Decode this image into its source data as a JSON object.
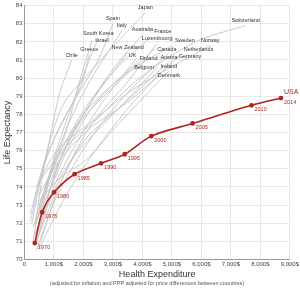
{
  "chart_data": {
    "type": "line",
    "x_label": "Health Expenditure",
    "subtitle": "(adjusted for inflation and PPP adjusted for price differences between countries)",
    "y_label": "Life Expectancy",
    "xlim": [
      0,
      9000
    ],
    "xticks": [
      0,
      {
        "value": 1000,
        "label": "1,000$"
      },
      {
        "value": 2000,
        "label": "2,000$"
      },
      {
        "value": 3000,
        "label": "3,000$"
      },
      {
        "value": 4000,
        "label": "4,000$"
      },
      {
        "value": 5000,
        "label": "5,000$"
      },
      {
        "value": 6000,
        "label": "6,000$"
      },
      {
        "value": 7000,
        "label": "7,000$"
      },
      {
        "value": 8000,
        "label": "8,000$"
      },
      {
        "value": 9000,
        "label": "9,000$"
      }
    ],
    "ylim": [
      70,
      84
    ],
    "yticks": [
      70,
      71,
      72,
      73,
      74,
      75,
      76,
      77,
      78,
      79,
      80,
      81,
      82,
      83,
      84
    ],
    "grid": true,
    "series": [
      {
        "name": "Japan",
        "color": "#c4c4c4",
        "x": [
          250,
          700,
          1300,
          2200,
          3100,
          4100
        ],
        "values": [
          72.0,
          75.5,
          78.5,
          80.3,
          81.9,
          83.6
        ]
      },
      {
        "name": "Spain",
        "color": "#c4c4c4",
        "x": [
          200,
          600,
          1100,
          1700,
          2500,
          3000
        ],
        "values": [
          72.1,
          74.8,
          77.0,
          78.8,
          81.0,
          83.0
        ]
      },
      {
        "name": "Italy",
        "color": "#c4c4c4",
        "x": [
          300,
          800,
          1500,
          2200,
          2900,
          3300
        ],
        "values": [
          71.8,
          74.5,
          77.5,
          79.8,
          81.6,
          82.6
        ]
      },
      {
        "name": "Switzerland",
        "color": "#c4c4c4",
        "x": [
          500,
          1200,
          2500,
          3900,
          5800,
          7500
        ],
        "values": [
          73.0,
          75.8,
          77.8,
          80.0,
          82.0,
          82.9
        ]
      },
      {
        "name": "South Korea",
        "color": "#c4c4c4",
        "x": [
          400,
          900,
          1500,
          2100,
          2500
        ],
        "values": [
          71.0,
          75.0,
          78.0,
          80.6,
          82.2
        ]
      },
      {
        "name": "Israel",
        "color": "#c4c4c4",
        "x": [
          400,
          900,
          1400,
          1900,
          2300
        ],
        "values": [
          72.0,
          74.8,
          77.0,
          80.0,
          82.1
        ]
      },
      {
        "name": "Chile",
        "color": "#c4c4c4",
        "x": [
          300,
          600,
          900,
          1200,
          1600
        ],
        "values": [
          71.0,
          74.5,
          77.0,
          79.2,
          81.0
        ]
      },
      {
        "name": "Greece",
        "color": "#c4c4c4",
        "x": [
          200,
          700,
          1300,
          1900,
          2200
        ],
        "values": [
          72.5,
          75.5,
          77.6,
          79.5,
          81.3
        ]
      },
      {
        "name": "Australia",
        "color": "#c4c4c4",
        "x": [
          500,
          1200,
          2000,
          3000,
          4000
        ],
        "values": [
          71.8,
          75.5,
          78.0,
          80.5,
          82.4
        ]
      },
      {
        "name": "France",
        "color": "#c4c4c4",
        "x": [
          400,
          1100,
          2000,
          3100,
          4300
        ],
        "values": [
          72.2,
          75.5,
          78.2,
          80.5,
          82.3
        ]
      },
      {
        "name": "Luxembourg",
        "color": "#c4c4c4",
        "x": [
          500,
          1300,
          2300,
          3500,
          4500
        ],
        "values": [
          70.8,
          74.5,
          77.5,
          79.8,
          81.9
        ]
      },
      {
        "name": "Canada",
        "color": "#c4c4c4",
        "x": [
          500,
          1200,
          2000,
          3200,
          4400
        ],
        "values": [
          72.8,
          75.5,
          77.8,
          79.8,
          81.6
        ]
      },
      {
        "name": "Sweden",
        "color": "#c4c4c4",
        "x": [
          600,
          1300,
          2100,
          3400,
          5000
        ],
        "values": [
          74.5,
          76.2,
          78.2,
          80.2,
          81.8
        ]
      },
      {
        "name": "Norway",
        "color": "#c4c4c4",
        "x": [
          400,
          1100,
          2200,
          3800,
          6300
        ],
        "values": [
          74.0,
          76.0,
          77.5,
          79.5,
          81.8
        ]
      },
      {
        "name": "New Zealand",
        "color": "#c4c4c4",
        "x": [
          500,
          900,
          1500,
          2400,
          3500
        ],
        "values": [
          71.5,
          74.0,
          76.5,
          79.0,
          81.4
        ]
      },
      {
        "name": "Finland",
        "color": "#c4c4c4",
        "x": [
          400,
          1000,
          1800,
          2700,
          3800
        ],
        "values": [
          70.8,
          74.0,
          76.5,
          78.8,
          81.1
        ]
      },
      {
        "name": "UK",
        "color": "#c4c4c4",
        "x": [
          350,
          900,
          1600,
          2500,
          3900
        ],
        "values": [
          71.9,
          74.0,
          76.5,
          78.8,
          81.0
        ]
      },
      {
        "name": "Austria",
        "color": "#c4c4c4",
        "x": [
          400,
          1100,
          2300,
          3500,
          4900
        ],
        "values": [
          70.5,
          73.5,
          76.8,
          79.2,
          81.4
        ]
      },
      {
        "name": "Netherlands",
        "color": "#c4c4c4",
        "x": [
          500,
          1200,
          2200,
          3600,
          5300
        ],
        "values": [
          73.6,
          75.5,
          77.2,
          78.8,
          81.3
        ]
      },
      {
        "name": "Ireland",
        "color": "#c4c4c4",
        "x": [
          300,
          800,
          1500,
          3000,
          4900
        ],
        "values": [
          71.2,
          73.0,
          75.3,
          78.0,
          80.9
        ]
      },
      {
        "name": "Germany",
        "color": "#c4c4c4",
        "x": [
          500,
          1400,
          2400,
          3600,
          5000
        ],
        "values": [
          70.6,
          73.5,
          76.0,
          78.5,
          80.9
        ]
      },
      {
        "name": "Belgium",
        "color": "#c4c4c4",
        "x": [
          400,
          1100,
          2000,
          3300,
          4500
        ],
        "values": [
          71.0,
          73.8,
          76.5,
          78.5,
          80.6
        ]
      },
      {
        "name": "Denmark",
        "color": "#c4c4c4",
        "x": [
          500,
          1200,
          2100,
          3200,
          4900
        ],
        "values": [
          73.2,
          74.5,
          75.5,
          77.5,
          80.4
        ]
      },
      {
        "name": "USA",
        "color": "#b0241f",
        "marker": "circle",
        "x": [
          350,
          600,
          1000,
          1700,
          2600,
          3400,
          4300,
          5700,
          7700,
          8700
        ],
        "values": [
          70.9,
          72.6,
          73.7,
          74.7,
          75.3,
          75.8,
          76.8,
          77.5,
          78.5,
          78.9
        ],
        "years": [
          1970,
          1975,
          1980,
          1985,
          1990,
          1995,
          2000,
          2005,
          2010,
          2014
        ]
      }
    ]
  }
}
